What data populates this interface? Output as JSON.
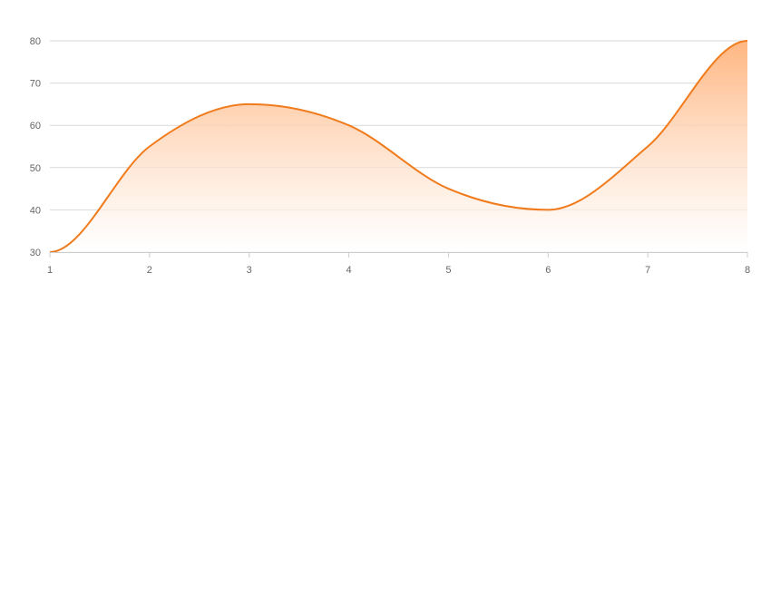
{
  "chart_data": {
    "type": "area",
    "x": [
      1,
      2,
      3,
      4,
      5,
      6,
      7,
      8
    ],
    "values": [
      30,
      55,
      65,
      60,
      45,
      40,
      55,
      80
    ],
    "xlim": [
      1,
      8
    ],
    "ylim": [
      30,
      80
    ],
    "x_ticks": [
      "1",
      "2",
      "3",
      "4",
      "5",
      "6",
      "7",
      "8"
    ],
    "y_ticks": [
      "30",
      "40",
      "50",
      "60",
      "70",
      "80"
    ],
    "grid": "horizontal",
    "smooth": true,
    "colors": {
      "line": "#f07b1c",
      "fill_top": "#ffb27a",
      "fill_bottom": "#ffffff",
      "grid": "#d9d9d9",
      "axis": "#cccccc",
      "tick_text": "#666666"
    }
  }
}
